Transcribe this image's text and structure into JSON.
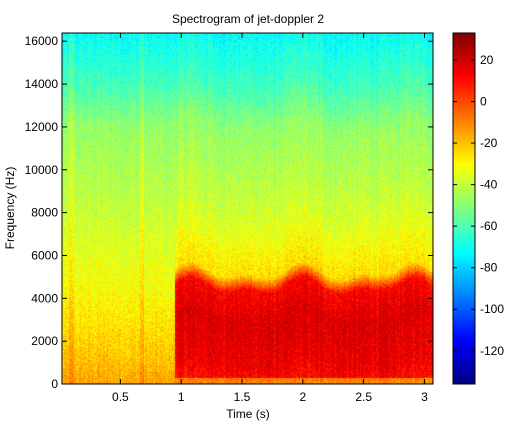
{
  "chart_data": {
    "type": "heatmap",
    "title": "Spectrogram of jet-doppler 2",
    "xlabel": "Time (s)",
    "ylabel": "Frequency (Hz)",
    "xlim": [
      0.02,
      3.07
    ],
    "ylim": [
      0,
      16384
    ],
    "x_ticks": [
      0.5,
      1,
      1.5,
      2,
      2.5,
      3
    ],
    "x_tick_labels": [
      "0.5",
      "1",
      "1.5",
      "2",
      "2.5",
      "3"
    ],
    "y_ticks": [
      0,
      2000,
      4000,
      6000,
      8000,
      10000,
      12000,
      14000,
      16000
    ],
    "y_tick_labels": [
      "0",
      "2000",
      "4000",
      "6000",
      "8000",
      "10000",
      "12000",
      "14000",
      "16000"
    ],
    "colorbar": {
      "colormap": "jet",
      "range": [
        -136,
        33
      ],
      "ticks": [
        20,
        0,
        -20,
        -40,
        -60,
        -80,
        -100,
        -120
      ],
      "tick_labels": [
        "20",
        "0",
        "-20",
        "-40",
        "-60",
        "-80",
        "-100",
        "-120"
      ]
    },
    "regions_db": {
      "note_free": "",
      "time_breakpoints_s": [
        0.02,
        0.95,
        3.07
      ],
      "freq_profile_before_jet": [
        {
          "freq_hz": 0,
          "db": -15
        },
        {
          "freq_hz": 1000,
          "db": -20
        },
        {
          "freq_hz": 4000,
          "db": -30
        },
        {
          "freq_hz": 8000,
          "db": -40
        },
        {
          "freq_hz": 12000,
          "db": -48
        },
        {
          "freq_hz": 14000,
          "db": -62
        },
        {
          "freq_hz": 16384,
          "db": -72
        }
      ],
      "freq_profile_after_jet": [
        {
          "freq_hz": 0,
          "db": 10
        },
        {
          "freq_hz": 1000,
          "db": 15
        },
        {
          "freq_hz": 3000,
          "db": 18
        },
        {
          "freq_hz": 4500,
          "db": 12
        },
        {
          "freq_hz": 5200,
          "db": -25
        },
        {
          "freq_hz": 8000,
          "db": -38
        },
        {
          "freq_hz": 12000,
          "db": -48
        },
        {
          "freq_hz": 14000,
          "db": -62
        },
        {
          "freq_hz": 16384,
          "db": -72
        }
      ]
    }
  }
}
